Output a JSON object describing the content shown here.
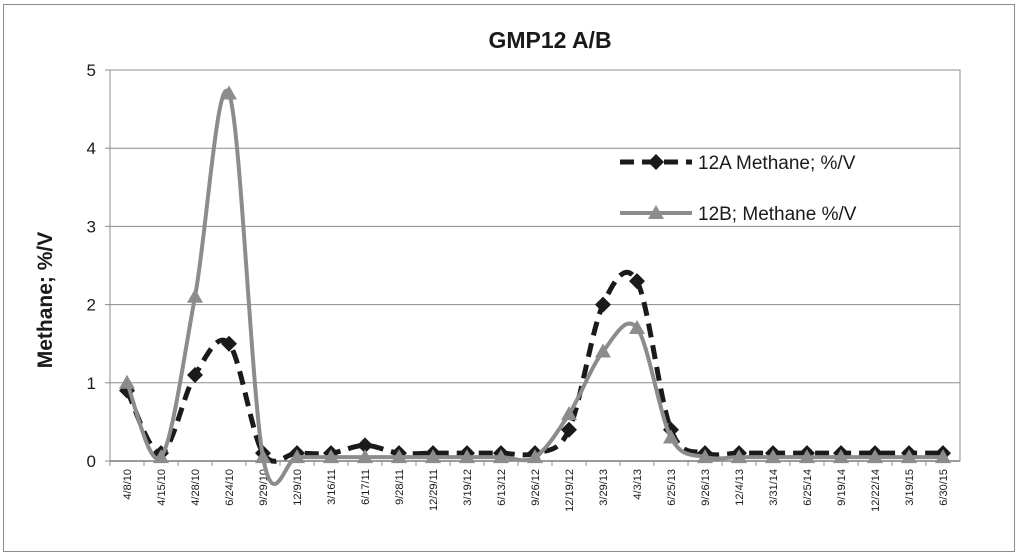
{
  "chart_data": {
    "type": "line",
    "title": "GMP12 A/B",
    "xlabel": "",
    "ylabel": "Methane; %/V",
    "ylim": [
      0,
      5
    ],
    "yticks": [
      "0",
      "1",
      "2",
      "3",
      "4",
      "5"
    ],
    "grid": "horizontal",
    "legend_position": "right",
    "categories": [
      "4/8/10",
      "4/15/10",
      "4/28/10",
      "6/24/10",
      "9/29/10",
      "12/9/10",
      "3/16/11",
      "6/17/11",
      "9/28/11",
      "12/29/11",
      "3/19/12",
      "6/13/12",
      "9/26/12",
      "12/19/12",
      "3/29/13",
      "4/3/13",
      "6/25/13",
      "9/26/13",
      "12/4/13",
      "3/31/14",
      "6/25/14",
      "9/19/14",
      "12/22/14",
      "3/19/15",
      "6/30/15"
    ],
    "series": [
      {
        "name": "12A Methane; %/V",
        "color": "#1a1a1a",
        "style": "dashed",
        "marker": "diamond",
        "values": [
          0.9,
          0.1,
          1.1,
          1.5,
          0.1,
          0.1,
          0.1,
          0.2,
          0.1,
          0.1,
          0.1,
          0.1,
          0.1,
          0.4,
          2.0,
          2.3,
          0.4,
          0.1,
          0.1,
          0.1,
          0.1,
          0.1,
          0.1,
          0.1,
          0.1
        ]
      },
      {
        "name": "12B; Methane %/V",
        "color": "#8c8c8c",
        "style": "solid",
        "marker": "triangle",
        "values": [
          1.0,
          0.05,
          2.1,
          4.7,
          0.05,
          0.05,
          0.05,
          0.05,
          0.05,
          0.05,
          0.05,
          0.05,
          0.05,
          0.6,
          1.4,
          1.7,
          0.3,
          0.05,
          0.05,
          0.05,
          0.05,
          0.05,
          0.05,
          0.05,
          0.05
        ]
      }
    ]
  }
}
